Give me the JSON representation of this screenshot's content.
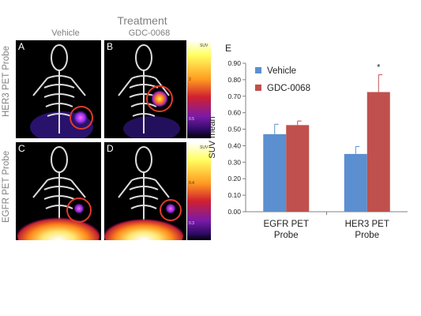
{
  "figure": {
    "treatment_title": "Treatment",
    "columns": [
      "Vehicle",
      "GDC-0068"
    ],
    "rows": [
      "HER3 PET Probe",
      "EGFR PET Probe"
    ],
    "panel_letters": [
      "A",
      "B",
      "C",
      "D"
    ],
    "scale_her3": {
      "title": "SUV",
      "high": "2",
      "low": "0.5"
    },
    "scale_egfr": {
      "title": "SUV",
      "high": "0.4",
      "low": "0.3"
    },
    "chart_letter": "E"
  },
  "chart_data": {
    "type": "bar",
    "categories": [
      "EGFR PET Probe",
      "HER3 PET Probe"
    ],
    "category_lines": [
      [
        "EGFR PET",
        "Probe"
      ],
      [
        "HER3 PET",
        "Probe"
      ]
    ],
    "series": [
      {
        "name": "Vehicle",
        "values": [
          0.47,
          0.35
        ],
        "errors": [
          0.06,
          0.045
        ],
        "color": "#5b8fcf"
      },
      {
        "name": "GDC-0068",
        "values": [
          0.525,
          0.725
        ],
        "errors": [
          0.025,
          0.105
        ],
        "color": "#c0504d"
      }
    ],
    "ylabel": "SUV mean",
    "ylim": [
      0,
      0.9
    ],
    "yticks": [
      "0.00",
      "0.10",
      "0.20",
      "0.30",
      "0.40",
      "0.50",
      "0.60",
      "0.70",
      "0.80",
      "0.90"
    ],
    "annotation": "*",
    "legend": "top-left",
    "grid": false
  }
}
